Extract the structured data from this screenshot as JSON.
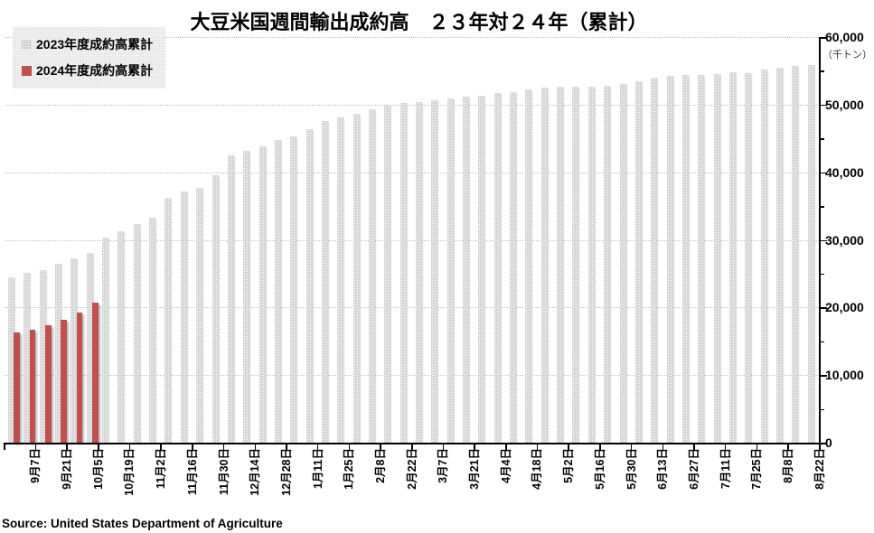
{
  "title": "大豆米国週間輸出成約高　２３年対２４年（累計）",
  "unit_label": "（千トン）",
  "source": "Source: United States Department of Agriculture",
  "legend": {
    "items": [
      {
        "label": "2023年度成約高累計",
        "color": "#d8d8d8",
        "pattern": "dots"
      },
      {
        "label": "2024年度成約高累計",
        "color": "#bf504d",
        "pattern": "solid"
      }
    ]
  },
  "colors": {
    "bar_2023": "#d8d8d8",
    "bar_2024": "#bf504d",
    "gridline": "#bfbfbf",
    "axis": "#000000"
  },
  "chart_data": {
    "type": "bar",
    "title": "大豆米国週間輸出成約高　２３年対２４年（累計）",
    "unit": "千トン",
    "xlabel": "",
    "ylabel": "（千トン）",
    "ylim": [
      0,
      60000
    ],
    "y_major_step": 10000,
    "y_minor_step": 5000,
    "grid": true,
    "legend_position": "top-left",
    "axis_side": "right",
    "n_weeks": 52,
    "weeks_per_tick_label": 2,
    "tick_labels": [
      "9月7日",
      "9月21日",
      "10月5日",
      "10月19日",
      "11月2日",
      "11月16日",
      "11月30日",
      "12月14日",
      "12月28日",
      "1月11日",
      "1月25日",
      "2月8日",
      "2月22日",
      "3月7日",
      "3月21日",
      "4月4日",
      "4月18日",
      "5月2日",
      "5月16日",
      "5月30日",
      "6月13日",
      "6月27日",
      "7月11日",
      "7月25日",
      "8月8日",
      "8月22日"
    ],
    "series": [
      {
        "name": "2023年度成約高累計",
        "color": "#d8d8d8",
        "values": [
          24400,
          25100,
          25500,
          26400,
          27200,
          28000,
          30300,
          31300,
          32400,
          33300,
          36200,
          37100,
          37700,
          39600,
          42500,
          43100,
          43800,
          44700,
          45300,
          46400,
          47600,
          48100,
          48700,
          49300,
          49800,
          50200,
          50400,
          50700,
          50900,
          51200,
          51300,
          51700,
          51900,
          52200,
          52500,
          52600,
          52700,
          52700,
          52800,
          53000,
          53400,
          54000,
          54200,
          54400,
          54400,
          54500,
          54800,
          54700,
          55200,
          55400,
          55700,
          55800
        ]
      },
      {
        "name": "2024年度成約高累計",
        "color": "#bf504d",
        "values": [
          16300,
          16700,
          17400,
          18200,
          19200,
          20700
        ]
      }
    ]
  }
}
